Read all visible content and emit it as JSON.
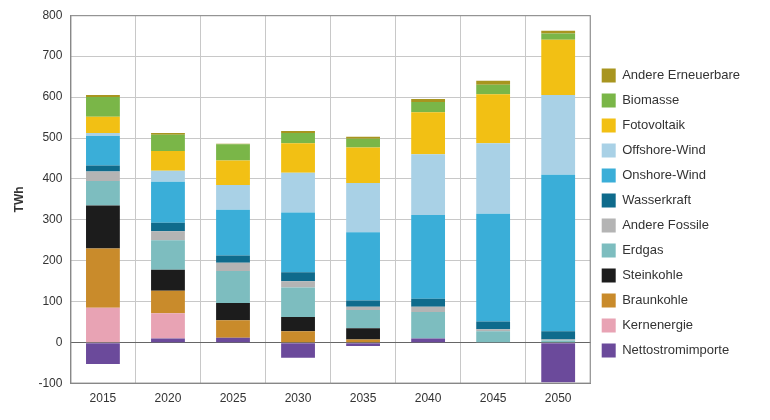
{
  "chart_data": {
    "type": "bar",
    "stacked": true,
    "grid": true,
    "legend": "right",
    "y_label": "TWh",
    "categories": [
      "2015",
      "2020",
      "2025",
      "2030",
      "2035",
      "2040",
      "2045",
      "2050"
    ],
    "ylim": [
      -100,
      800
    ],
    "yticks": [
      -100,
      0,
      100,
      200,
      300,
      400,
      500,
      600,
      700,
      800
    ],
    "series": [
      {
        "name": "Nettostromimporte",
        "color": "#6b4a9b",
        "values": [
          -52,
          10,
          12,
          -37,
          -8,
          10,
          0,
          -97
        ]
      },
      {
        "name": "Kernenergie",
        "color": "#e8a3b4",
        "values": [
          85,
          62,
          0,
          0,
          0,
          0,
          0,
          0
        ]
      },
      {
        "name": "Braunkohle",
        "color": "#c98b2b",
        "values": [
          145,
          55,
          43,
          28,
          8,
          0,
          0,
          0
        ]
      },
      {
        "name": "Steinkohle",
        "color": "#1c1c1c",
        "values": [
          105,
          51,
          42,
          35,
          27,
          0,
          0,
          0
        ]
      },
      {
        "name": "Erdgas",
        "color": "#7dbdbf",
        "values": [
          60,
          72,
          78,
          72,
          45,
          65,
          28,
          5
        ]
      },
      {
        "name": "Andere Fossile",
        "color": "#b4b4b4",
        "values": [
          23,
          22,
          20,
          15,
          8,
          13,
          5,
          3
        ]
      },
      {
        "name": "Wasserkraft",
        "color": "#0f6b8c",
        "values": [
          15,
          21,
          18,
          22,
          15,
          19,
          19,
          20
        ]
      },
      {
        "name": "Onshore-Wind",
        "color": "#3aaed8",
        "values": [
          72,
          100,
          112,
          146,
          167,
          205,
          263,
          382
        ]
      },
      {
        "name": "Offshore-Wind",
        "color": "#a9d1e6",
        "values": [
          7,
          27,
          60,
          97,
          120,
          148,
          172,
          195
        ]
      },
      {
        "name": "Fotovoltaik",
        "color": "#f2c014",
        "values": [
          40,
          48,
          60,
          72,
          87,
          103,
          120,
          135
        ]
      },
      {
        "name": "Biomasse",
        "color": "#7ab648",
        "values": [
          48,
          40,
          40,
          25,
          21,
          25,
          23,
          15
        ]
      },
      {
        "name": "Andere Erneuerbare",
        "color": "#a8951f",
        "values": [
          5,
          4,
          1,
          5,
          5,
          7,
          10,
          7
        ]
      }
    ]
  }
}
